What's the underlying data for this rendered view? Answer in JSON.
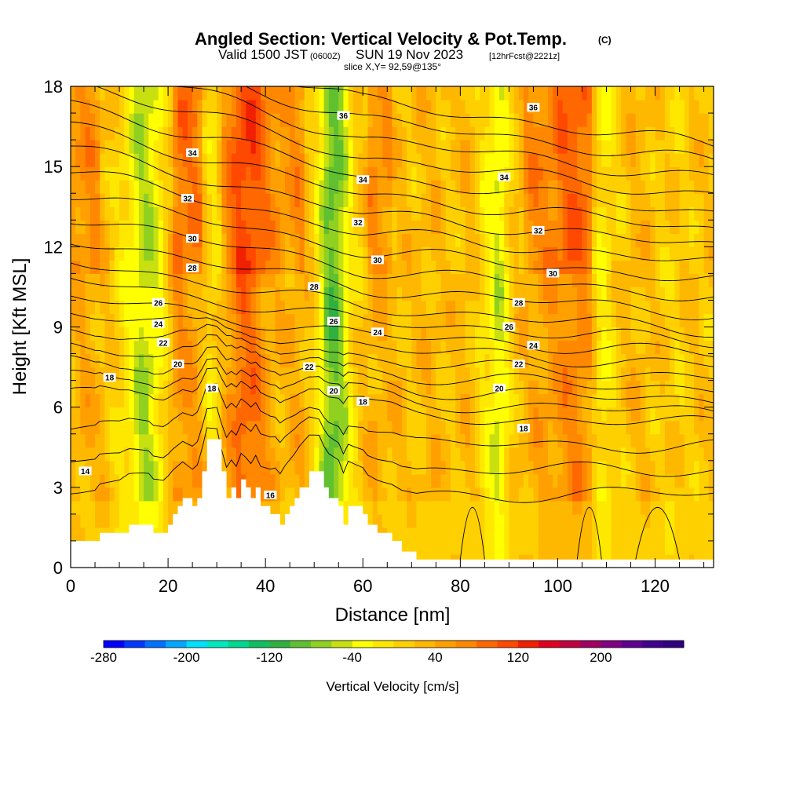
{
  "title": {
    "main": "Angled Section: Vertical Velocity & Pot.Temp.",
    "main_suffix": "(C)",
    "valid_prefix": "Valid 1500 JST",
    "valid_z": "(0600Z)",
    "valid_date": "SUN 19 Nov 2023",
    "fcst": "[12hrFcst@2221z]",
    "slice": "slice X,Y= 92,59@135°"
  },
  "chart_data": {
    "type": "heatmap",
    "xlabel": "Distance [nm]",
    "ylabel": "Height [Kft MSL]",
    "xlim": [
      0,
      132
    ],
    "ylim": [
      0,
      18
    ],
    "x_ticks": [
      0,
      20,
      40,
      60,
      80,
      100,
      120
    ],
    "y_ticks": [
      0,
      3,
      6,
      9,
      12,
      15,
      18
    ],
    "colorbar": {
      "title": "Vertical Velocity [cm/s]",
      "min": -280,
      "max": 280,
      "step": 20,
      "tick_values": [
        -280,
        -200,
        -120,
        -40,
        40,
        120,
        200
      ],
      "colors": [
        "#0000ff",
        "#0038ff",
        "#0070ff",
        "#00a8ff",
        "#00e0ff",
        "#00e8c0",
        "#00d890",
        "#10c060",
        "#30b040",
        "#60c030",
        "#90d020",
        "#c8e010",
        "#ffff00",
        "#ffe800",
        "#ffd000",
        "#ffb800",
        "#ffa000",
        "#ff8800",
        "#ff6800",
        "#ff4800",
        "#f02000",
        "#e00020",
        "#c00040",
        "#a00060",
        "#800080",
        "#600090",
        "#400090",
        "#300080"
      ]
    },
    "velocity_columns": [
      {
        "x": 0,
        "value": 30
      },
      {
        "x": 4,
        "value": 40
      },
      {
        "x": 8,
        "value": 20
      },
      {
        "x": 12,
        "value": -20
      },
      {
        "x": 15,
        "value": -60
      },
      {
        "x": 18,
        "value": -30
      },
      {
        "x": 22,
        "value": 60
      },
      {
        "x": 26,
        "value": 50
      },
      {
        "x": 29,
        "value": -10
      },
      {
        "x": 32,
        "value": 40
      },
      {
        "x": 35,
        "value": 90
      },
      {
        "x": 38,
        "value": 80
      },
      {
        "x": 41,
        "value": 40
      },
      {
        "x": 44,
        "value": 30
      },
      {
        "x": 47,
        "value": 40
      },
      {
        "x": 50,
        "value": 10
      },
      {
        "x": 53,
        "value": -90
      },
      {
        "x": 55,
        "value": -80
      },
      {
        "x": 58,
        "value": 0
      },
      {
        "x": 62,
        "value": 40
      },
      {
        "x": 66,
        "value": 30
      },
      {
        "x": 70,
        "value": 20
      },
      {
        "x": 74,
        "value": 30
      },
      {
        "x": 78,
        "value": 20
      },
      {
        "x": 82,
        "value": 30
      },
      {
        "x": 86,
        "value": -20
      },
      {
        "x": 88,
        "value": -50
      },
      {
        "x": 91,
        "value": 20
      },
      {
        "x": 95,
        "value": 40
      },
      {
        "x": 99,
        "value": 50
      },
      {
        "x": 103,
        "value": 70
      },
      {
        "x": 106,
        "value": 60
      },
      {
        "x": 109,
        "value": -20
      },
      {
        "x": 112,
        "value": 10
      },
      {
        "x": 116,
        "value": 30
      },
      {
        "x": 120,
        "value": 20
      },
      {
        "x": 124,
        "value": 10
      },
      {
        "x": 128,
        "value": 20
      },
      {
        "x": 132,
        "value": 20
      }
    ],
    "terrain": [
      {
        "x": 0,
        "h": 1.0
      },
      {
        "x": 5,
        "h": 1.0
      },
      {
        "x": 6,
        "h": 1.3
      },
      {
        "x": 10,
        "h": 1.3
      },
      {
        "x": 12,
        "h": 1.6
      },
      {
        "x": 16,
        "h": 1.6
      },
      {
        "x": 17,
        "h": 1.3
      },
      {
        "x": 19,
        "h": 1.3
      },
      {
        "x": 20,
        "h": 1.6
      },
      {
        "x": 21,
        "h": 2.0
      },
      {
        "x": 22,
        "h": 2.3
      },
      {
        "x": 23,
        "h": 2.6
      },
      {
        "x": 25,
        "h": 2.3
      },
      {
        "x": 26,
        "h": 2.6
      },
      {
        "x": 27,
        "h": 3.6
      },
      {
        "x": 28,
        "h": 4.8
      },
      {
        "x": 30,
        "h": 4.8
      },
      {
        "x": 31,
        "h": 3.6
      },
      {
        "x": 32,
        "h": 2.6
      },
      {
        "x": 33,
        "h": 3.0
      },
      {
        "x": 34,
        "h": 2.6
      },
      {
        "x": 35,
        "h": 3.3
      },
      {
        "x": 36,
        "h": 3.0
      },
      {
        "x": 37,
        "h": 2.6
      },
      {
        "x": 38,
        "h": 3.0
      },
      {
        "x": 39,
        "h": 2.3
      },
      {
        "x": 41,
        "h": 2.0
      },
      {
        "x": 42,
        "h": 2.0
      },
      {
        "x": 43,
        "h": 1.6
      },
      {
        "x": 44,
        "h": 2.0
      },
      {
        "x": 45,
        "h": 2.3
      },
      {
        "x": 46,
        "h": 2.6
      },
      {
        "x": 47,
        "h": 3.0
      },
      {
        "x": 49,
        "h": 3.6
      },
      {
        "x": 51,
        "h": 3.6
      },
      {
        "x": 52,
        "h": 3.0
      },
      {
        "x": 53,
        "h": 2.6
      },
      {
        "x": 55,
        "h": 2.3
      },
      {
        "x": 56,
        "h": 1.6
      },
      {
        "x": 57,
        "h": 2.3
      },
      {
        "x": 60,
        "h": 2.0
      },
      {
        "x": 61,
        "h": 1.6
      },
      {
        "x": 63,
        "h": 1.3
      },
      {
        "x": 66,
        "h": 1.0
      },
      {
        "x": 68,
        "h": 0.6
      },
      {
        "x": 71,
        "h": 0.3
      },
      {
        "x": 132,
        "h": 0.3
      }
    ],
    "contour_labels": [
      {
        "text": "36",
        "x": 56,
        "y": 16.9
      },
      {
        "text": "36",
        "x": 95,
        "y": 17.2
      },
      {
        "text": "34",
        "x": 25,
        "y": 15.5
      },
      {
        "text": "34",
        "x": 60,
        "y": 14.5
      },
      {
        "text": "34",
        "x": 89,
        "y": 14.6
      },
      {
        "text": "32",
        "x": 24,
        "y": 13.8
      },
      {
        "text": "32",
        "x": 59,
        "y": 12.9
      },
      {
        "text": "32",
        "x": 96,
        "y": 12.6
      },
      {
        "text": "30",
        "x": 25,
        "y": 12.3
      },
      {
        "text": "30",
        "x": 63,
        "y": 11.5
      },
      {
        "text": "30",
        "x": 99,
        "y": 11.0
      },
      {
        "text": "28",
        "x": 25,
        "y": 11.2
      },
      {
        "text": "28",
        "x": 50,
        "y": 10.5
      },
      {
        "text": "28",
        "x": 92,
        "y": 9.9
      },
      {
        "text": "26",
        "x": 18,
        "y": 9.9
      },
      {
        "text": "26",
        "x": 54,
        "y": 9.2
      },
      {
        "text": "26",
        "x": 90,
        "y": 9.0
      },
      {
        "text": "24",
        "x": 18,
        "y": 9.1
      },
      {
        "text": "24",
        "x": 63,
        "y": 8.8
      },
      {
        "text": "24",
        "x": 95,
        "y": 8.3
      },
      {
        "text": "22",
        "x": 19,
        "y": 8.4
      },
      {
        "text": "22",
        "x": 49,
        "y": 7.5
      },
      {
        "text": "22",
        "x": 92,
        "y": 7.6
      },
      {
        "text": "20",
        "x": 22,
        "y": 7.6
      },
      {
        "text": "20",
        "x": 54,
        "y": 6.6
      },
      {
        "text": "20",
        "x": 88,
        "y": 6.7
      },
      {
        "text": "18",
        "x": 8,
        "y": 7.1
      },
      {
        "text": "18",
        "x": 29,
        "y": 6.7
      },
      {
        "text": "18",
        "x": 60,
        "y": 6.2
      },
      {
        "text": "18",
        "x": 93,
        "y": 5.2
      },
      {
        "text": "16",
        "x": 41,
        "y": 2.7
      },
      {
        "text": "14",
        "x": 3,
        "y": 3.6
      }
    ],
    "contour_levels": [
      12,
      14,
      16,
      18,
      19,
      20,
      21,
      22,
      23,
      24,
      25,
      26,
      27,
      28,
      29,
      30,
      31,
      32,
      33,
      34,
      35,
      36,
      37
    ]
  }
}
